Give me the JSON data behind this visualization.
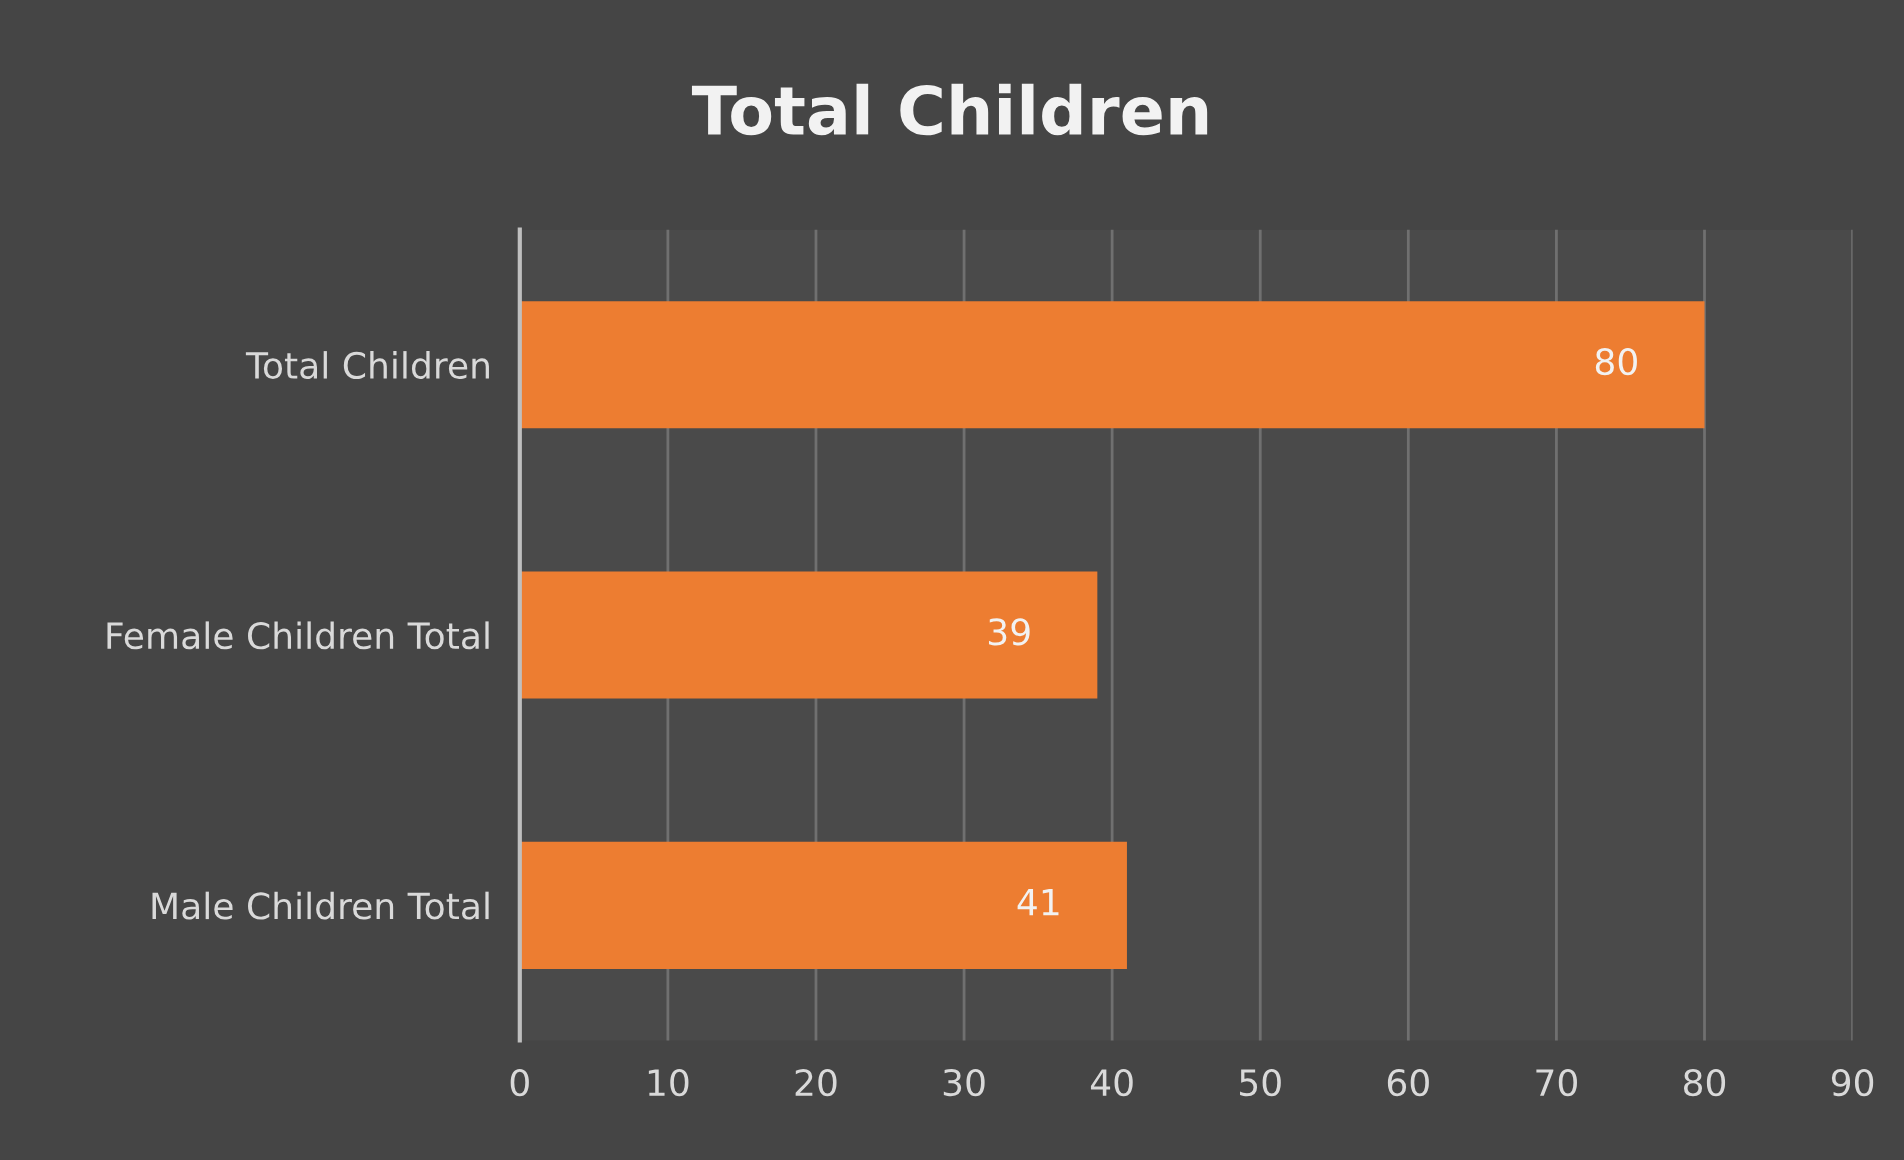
{
  "chart_data": {
    "type": "bar",
    "orientation": "horizontal",
    "title": "Total Children",
    "categories": [
      "Total Children",
      "Female Children Total",
      "Male Children Total"
    ],
    "values": [
      80,
      39,
      41
    ],
    "color": "#ed7d31",
    "xlim": [
      0,
      90
    ],
    "xticks": [
      0,
      10,
      20,
      30,
      40,
      50,
      60,
      70,
      80,
      90
    ],
    "grid": "x",
    "data_labels": true
  }
}
